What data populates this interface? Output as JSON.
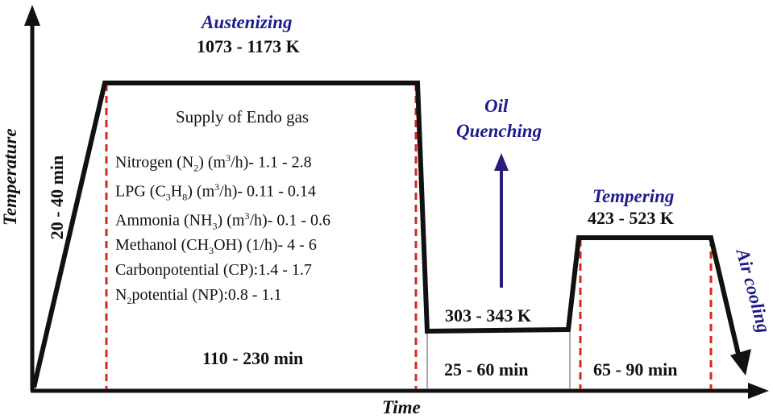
{
  "axes": {
    "y_label": "Temperature",
    "x_label": "Time"
  },
  "stages": {
    "heating": {
      "duration": "20 - 40 min"
    },
    "austenizing": {
      "title": "Austenizing",
      "temperature": "1073 - 1173 K",
      "duration": "110 - 230 min"
    },
    "quench": {
      "title_line1": "Oil",
      "title_line2": "Quenching",
      "temperature": "303 - 343 K",
      "duration": "25 - 60 min"
    },
    "tempering": {
      "title": "Tempering",
      "temperature": "423 - 523 K",
      "duration": "65 - 90 min"
    },
    "cooling": {
      "title": "Air cooling"
    }
  },
  "gas": {
    "heading": "Supply of Endo gas",
    "rows": [
      {
        "pre": "Nitrogen (N",
        "sub": "2",
        "mid": ") (m",
        "sup": "3",
        "post": "/h)- 1.1 - 2.8"
      },
      {
        "pre": "LPG (C",
        "sub": "3",
        "mid": "H",
        "sub2": "8",
        "mid2": ") (m",
        "sup": "3",
        "post": "/h)- 0.11 - 0.14"
      },
      {
        "pre": "Ammonia (NH",
        "sub": "3",
        "mid": ") (m",
        "sup": "3",
        "post": "/h)- 0.1 - 0.6"
      },
      {
        "pre": "Methanol (CH",
        "sub": "3",
        "mid": "OH) (1/h)- 4 - 6"
      },
      {
        "pre": "Carbonpotential (CP):1.4 - 1.7"
      },
      {
        "pre": "N",
        "sub": "2",
        "mid": "potential (NP):0.8 - 1.1"
      }
    ]
  },
  "colors": {
    "profile": "#111111",
    "guide": "#d42a1e",
    "accent_text": "#1c1c8c",
    "arrow": "#2a1c7a"
  }
}
